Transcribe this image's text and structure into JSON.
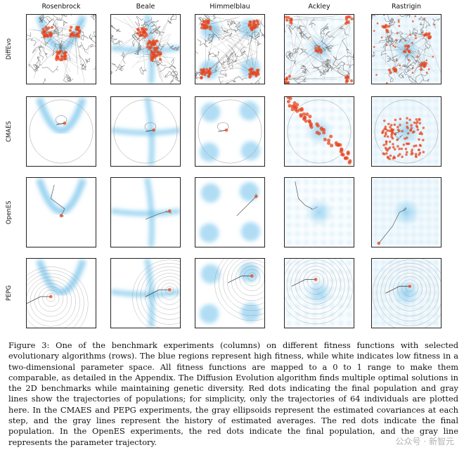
{
  "columns": [
    "Rosenbrock",
    "Beale",
    "Himmelblau",
    "Ackley",
    "Rastrigin"
  ],
  "rows": [
    "DiffEvo",
    "CMAES",
    "OpenES",
    "PEPG"
  ],
  "caption": "Figure 3: One of the benchmark experiments (columns) on different fitness functions with selected evolutionary algorithms (rows). The blue regions represent high fitness, while white indicates low fitness in a two-dimensional parameter space. All fitness functions are mapped to a 0 to 1 range to make them comparable, as detailed in the Appendix. The Diffusion Evolution algorithm finds multiple optimal solutions in the 2D benchmarks while maintaining genetic diversity. Red dots indicating the final population and gray lines show the trajectories of populations; for simplicity, only the trajectories of 64 individuals are plotted here. In the CMAES and PEPG experiments, the gray ellipsoids represent the estimated covariances at each step, and the gray lines represent the history of estimated averages. The red dots indicate the final population. In the OpenES experiments, the red dots indicate the final population, and the gray line represents the parameter trajectory.",
  "watermark": "公众号 · 新智元",
  "colors": {
    "fitness": "#4fb3e6",
    "population": "#e8451e",
    "trajectory": "#666666"
  }
}
